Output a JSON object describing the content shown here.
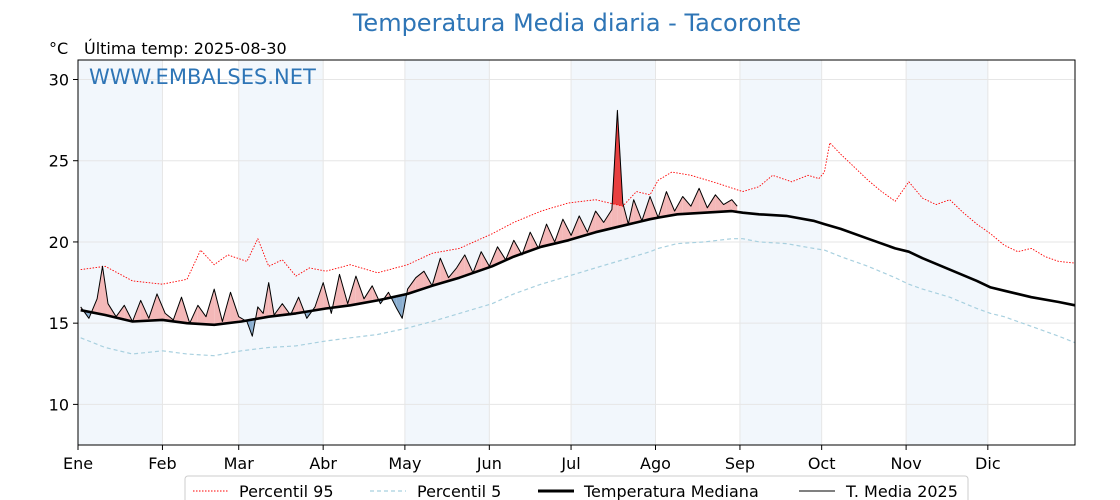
{
  "chart_data": {
    "type": "line",
    "title": "Temperatura Media diaria - Tacoronte",
    "unit": "°C",
    "last_reading": "Última temp: 2025-08-30",
    "watermark": "WWW.EMBALSES.NET",
    "xlabel": "",
    "ylabel": "",
    "x_domain": [
      0,
      366
    ],
    "ylim": [
      7.5,
      31.2
    ],
    "y_ticks": [
      10,
      15,
      20,
      25,
      30
    ],
    "x_ticks": [
      {
        "day": 1,
        "label": "Ene"
      },
      {
        "day": 32,
        "label": "Feb"
      },
      {
        "day": 60,
        "label": "Mar"
      },
      {
        "day": 91,
        "label": "Abr"
      },
      {
        "day": 121,
        "label": "May"
      },
      {
        "day": 152,
        "label": "Jun"
      },
      {
        "day": 182,
        "label": "Jul"
      },
      {
        "day": 213,
        "label": "Ago"
      },
      {
        "day": 244,
        "label": "Sep"
      },
      {
        "day": 274,
        "label": "Oct"
      },
      {
        "day": 305,
        "label": "Nov"
      },
      {
        "day": 335,
        "label": "Dic"
      }
    ],
    "grid": true,
    "shaded_months": [
      "Ene",
      "Mar",
      "May",
      "Jul",
      "Sep",
      "Nov"
    ],
    "legend_position": "bottom",
    "series": [
      {
        "name": "Percentil 95",
        "color": "#ff0000",
        "style": "dotted",
        "x": [
          1,
          10,
          20,
          31,
          40,
          45,
          50,
          55,
          62,
          66,
          70,
          75,
          80,
          85,
          91,
          100,
          110,
          121,
          130,
          140,
          152,
          160,
          170,
          180,
          190,
          200,
          205,
          210,
          213,
          218,
          225,
          235,
          244,
          250,
          255,
          262,
          268,
          272,
          274,
          276,
          280,
          285,
          290,
          295,
          300,
          305,
          310,
          315,
          320,
          325,
          330,
          335,
          340,
          345,
          350,
          355,
          360,
          366
        ],
        "values": [
          18.3,
          18.5,
          17.6,
          17.4,
          17.7,
          19.5,
          18.6,
          19.2,
          18.8,
          20.2,
          18.5,
          18.9,
          17.9,
          18.4,
          18.2,
          18.6,
          18.1,
          18.6,
          19.3,
          19.6,
          20.5,
          21.2,
          21.9,
          22.4,
          22.6,
          22.2,
          23.1,
          22.9,
          23.8,
          24.3,
          24.1,
          23.6,
          23.1,
          23.4,
          24.1,
          23.7,
          24.1,
          23.9,
          24.3,
          26.1,
          25.4,
          24.6,
          23.8,
          23.1,
          22.5,
          23.7,
          22.7,
          22.3,
          22.6,
          21.8,
          21.1,
          20.5,
          19.8,
          19.4,
          19.6,
          19.1,
          18.8,
          18.7
        ]
      },
      {
        "name": "Percentil 5",
        "color": "#a8d0df",
        "style": "dashed",
        "x": [
          1,
          10,
          20,
          31,
          40,
          50,
          60,
          70,
          80,
          91,
          100,
          110,
          121,
          130,
          140,
          152,
          160,
          170,
          180,
          190,
          200,
          210,
          213,
          220,
          230,
          240,
          244,
          250,
          260,
          270,
          274,
          280,
          290,
          300,
          305,
          310,
          320,
          330,
          335,
          340,
          350,
          360,
          366
        ],
        "values": [
          14.1,
          13.5,
          13.1,
          13.3,
          13.1,
          13.0,
          13.3,
          13.5,
          13.6,
          13.9,
          14.1,
          14.3,
          14.7,
          15.1,
          15.6,
          16.2,
          16.8,
          17.4,
          17.9,
          18.4,
          18.9,
          19.4,
          19.6,
          19.9,
          20.0,
          20.2,
          20.2,
          20.0,
          19.9,
          19.6,
          19.5,
          19.1,
          18.5,
          17.8,
          17.4,
          17.1,
          16.6,
          15.9,
          15.6,
          15.4,
          14.8,
          14.2,
          13.8
        ]
      },
      {
        "name": "Temperatura Mediana",
        "color": "#000000",
        "style": "solid",
        "x": [
          1,
          10,
          20,
          31,
          40,
          50,
          60,
          70,
          80,
          91,
          100,
          110,
          121,
          130,
          140,
          152,
          160,
          170,
          180,
          190,
          200,
          210,
          213,
          220,
          230,
          240,
          244,
          250,
          260,
          270,
          274,
          280,
          290,
          300,
          305,
          310,
          320,
          330,
          335,
          340,
          350,
          360,
          366
        ],
        "values": [
          15.8,
          15.5,
          15.1,
          15.2,
          15.0,
          14.9,
          15.1,
          15.4,
          15.6,
          15.9,
          16.1,
          16.4,
          16.8,
          17.3,
          17.8,
          18.5,
          19.1,
          19.7,
          20.1,
          20.6,
          21.0,
          21.4,
          21.5,
          21.7,
          21.8,
          21.9,
          21.8,
          21.7,
          21.6,
          21.3,
          21.1,
          20.8,
          20.2,
          19.6,
          19.4,
          19.0,
          18.3,
          17.6,
          17.2,
          17.0,
          16.6,
          16.3,
          16.1
        ]
      },
      {
        "name": "T. Media 2025",
        "color": "#000000",
        "style": "solid-thin",
        "x": [
          1,
          4,
          7,
          9,
          11,
          14,
          17,
          20,
          23,
          26,
          29,
          32,
          35,
          38,
          41,
          44,
          47,
          50,
          53,
          56,
          59,
          62,
          64,
          66,
          68,
          70,
          72,
          75,
          78,
          81,
          84,
          87,
          90,
          93,
          96,
          99,
          102,
          105,
          108,
          111,
          114,
          117,
          119,
          121,
          124,
          127,
          130,
          133,
          136,
          139,
          142,
          145,
          148,
          151,
          154,
          157,
          160,
          163,
          166,
          169,
          172,
          175,
          178,
          181,
          184,
          187,
          190,
          193,
          196,
          198,
          200,
          202,
          204,
          207,
          210,
          213,
          216,
          219,
          222,
          225,
          228,
          231,
          234,
          237,
          240,
          242
        ],
        "values": [
          16.0,
          15.3,
          16.5,
          18.5,
          16.2,
          15.4,
          16.1,
          15.1,
          16.4,
          15.3,
          16.8,
          15.6,
          15.2,
          16.6,
          15.0,
          16.1,
          15.4,
          17.1,
          15.1,
          16.9,
          15.4,
          15.1,
          14.2,
          16.0,
          15.6,
          17.5,
          15.5,
          16.2,
          15.5,
          16.6,
          15.3,
          16.0,
          17.5,
          15.6,
          18.0,
          16.2,
          17.9,
          16.5,
          17.3,
          16.2,
          16.9,
          15.9,
          15.3,
          17.1,
          17.8,
          18.2,
          17.3,
          19.0,
          17.8,
          18.4,
          19.2,
          18.1,
          19.4,
          18.5,
          19.7,
          18.9,
          20.1,
          19.2,
          20.6,
          19.6,
          21.1,
          20.0,
          21.4,
          20.4,
          21.6,
          20.6,
          21.9,
          21.2,
          22.0,
          28.1,
          22.4,
          21.1,
          22.6,
          21.3,
          22.8,
          21.5,
          23.1,
          21.9,
          22.8,
          22.2,
          23.3,
          22.1,
          22.9,
          22.3,
          22.6,
          22.2
        ]
      }
    ]
  }
}
